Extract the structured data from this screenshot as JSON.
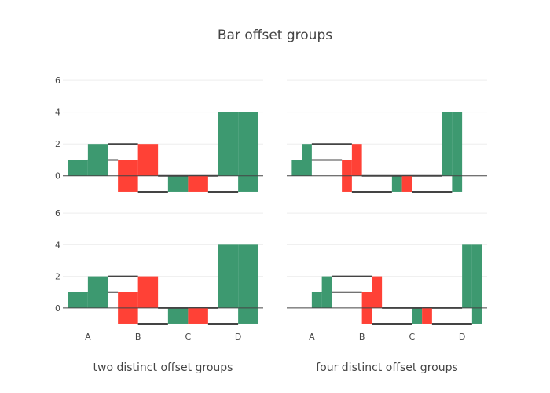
{
  "chart_data": {
    "type": "waterfall",
    "title": "Bar offset groups",
    "categories": [
      "A",
      "B",
      "C",
      "D"
    ],
    "yticks": [
      0,
      2,
      4,
      6
    ],
    "ylim": [
      -1.2,
      6.7
    ],
    "grid": true,
    "colors": {
      "increasing": "#3D9970",
      "decreasing": "#FF4136",
      "connector": "#444444"
    },
    "subplots": [
      {
        "name": "top-left",
        "xlabel": "",
        "offset_groups": 2,
        "series": [
          {
            "offsetgroup": 0,
            "measures": [
              "relative",
              "relative",
              "relative",
              "relative"
            ],
            "values": [
              1,
              -2,
              1,
              4
            ]
          },
          {
            "offsetgroup": 1,
            "measures": [
              "relative",
              "relative",
              "relative",
              "relative"
            ],
            "values": [
              2,
              -2,
              -1,
              5
            ]
          }
        ]
      },
      {
        "name": "top-right",
        "xlabel": "",
        "offset_groups": 4,
        "series": [
          {
            "offsetgroup": 0,
            "measures": [
              "relative",
              "relative",
              "relative",
              "relative"
            ],
            "values": [
              1,
              -2,
              1,
              4
            ]
          },
          {
            "offsetgroup": 1,
            "measures": [
              "relative",
              "relative",
              "relative",
              "relative"
            ],
            "values": [
              2,
              -2,
              -1,
              5
            ]
          }
        ]
      },
      {
        "name": "bottom-left",
        "xlabel": "two distinct offset groups",
        "offset_groups": 2,
        "series": [
          {
            "offsetgroup": 0,
            "measures": [
              "relative",
              "relative",
              "relative",
              "relative"
            ],
            "values": [
              1,
              -2,
              1,
              4
            ]
          },
          {
            "offsetgroup": 1,
            "measures": [
              "relative",
              "relative",
              "relative",
              "relative"
            ],
            "values": [
              2,
              -2,
              -1,
              5
            ]
          }
        ]
      },
      {
        "name": "bottom-right",
        "xlabel": "four distinct offset groups",
        "offset_groups": 4,
        "series": [
          {
            "offsetgroup": 2,
            "measures": [
              "relative",
              "relative",
              "relative",
              "relative"
            ],
            "values": [
              1,
              -2,
              1,
              4
            ]
          },
          {
            "offsetgroup": 3,
            "measures": [
              "relative",
              "relative",
              "relative",
              "relative"
            ],
            "values": [
              2,
              -2,
              -1,
              5
            ]
          }
        ]
      }
    ]
  }
}
